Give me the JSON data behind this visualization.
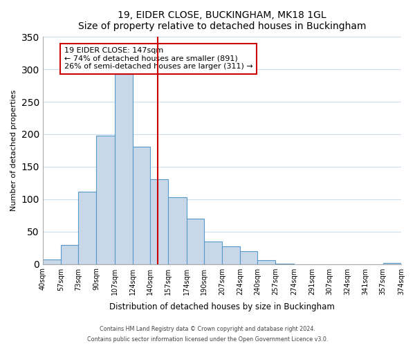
{
  "title": "19, EIDER CLOSE, BUCKINGHAM, MK18 1GL",
  "subtitle": "Size of property relative to detached houses in Buckingham",
  "xlabel": "Distribution of detached houses by size in Buckingham",
  "ylabel": "Number of detached properties",
  "bin_labels": [
    "40sqm",
    "57sqm",
    "73sqm",
    "90sqm",
    "107sqm",
    "124sqm",
    "140sqm",
    "157sqm",
    "174sqm",
    "190sqm",
    "207sqm",
    "224sqm",
    "240sqm",
    "257sqm",
    "274sqm",
    "291sqm",
    "307sqm",
    "324sqm",
    "341sqm",
    "357sqm",
    "374sqm"
  ],
  "bin_edges": [
    40,
    57,
    73,
    90,
    107,
    124,
    140,
    157,
    174,
    190,
    207,
    224,
    240,
    257,
    274,
    291,
    307,
    324,
    341,
    357,
    374
  ],
  "bar_heights": [
    7,
    29,
    111,
    198,
    293,
    181,
    131,
    103,
    70,
    35,
    27,
    20,
    6,
    1,
    0,
    0,
    0,
    0,
    0,
    2
  ],
  "bar_color": "#c8d8e8",
  "bar_edge_color": "#5599cc",
  "vline_x": 147,
  "vline_color": "#cc0000",
  "annotation_box_color": "#cc0000",
  "annotation_text_line1": "19 EIDER CLOSE: 147sqm",
  "annotation_text_line2": "← 74% of detached houses are smaller (891)",
  "annotation_text_line3": "26% of semi-detached houses are larger (311) →",
  "ylim": [
    0,
    350
  ],
  "footer1": "Contains HM Land Registry data © Crown copyright and database right 2024.",
  "footer2": "Contains public sector information licensed under the Open Government Licence v3.0."
}
